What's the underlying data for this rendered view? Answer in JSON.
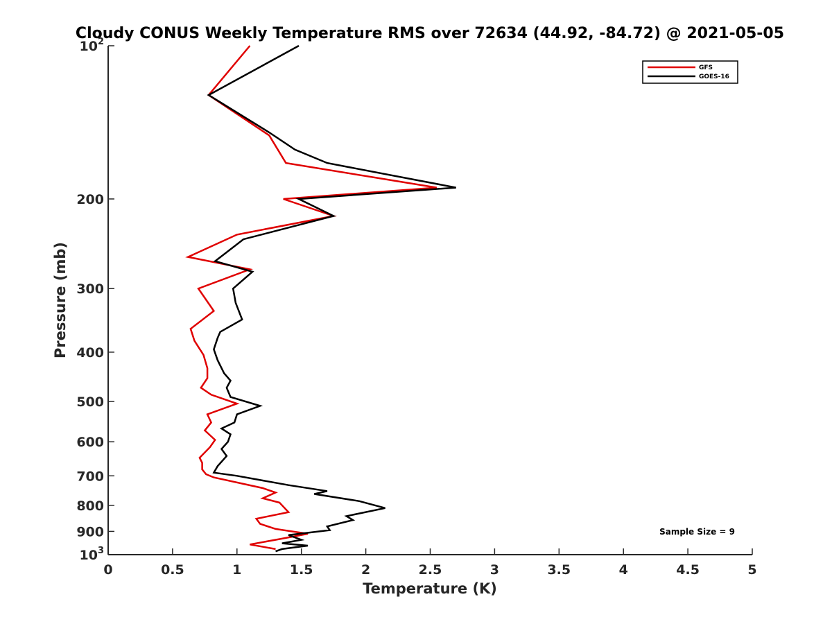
{
  "chart_data": {
    "type": "line",
    "title": "Cloudy CONUS Weekly Temperature RMS over 72634 (44.92, -84.72) @ 2021-05-05",
    "xlabel": "Temperature (K)",
    "ylabel": "Pressure (mb)",
    "xlim": [
      0,
      5
    ],
    "ylim": [
      100,
      1000
    ],
    "y_scale": "log",
    "y_reversed": true,
    "x_ticks": [
      "0",
      "0.5",
      "1",
      "1.5",
      "2",
      "2.5",
      "3",
      "3.5",
      "4",
      "4.5",
      "5"
    ],
    "y_ticks": [
      {
        "value": 100,
        "base": "10",
        "exp": "2"
      },
      {
        "value": 200,
        "label": "200"
      },
      {
        "value": 300,
        "label": "300"
      },
      {
        "value": 400,
        "label": "400"
      },
      {
        "value": 500,
        "label": "500"
      },
      {
        "value": 600,
        "label": "600"
      },
      {
        "value": 700,
        "label": "700"
      },
      {
        "value": 800,
        "label": "800"
      },
      {
        "value": 900,
        "label": "900"
      },
      {
        "value": 1000,
        "base": "10",
        "exp": "3"
      }
    ],
    "grid": false,
    "legend_position": "top-right",
    "annotation": "Sample Size = 9",
    "series": [
      {
        "name": "GFS",
        "color": "#e00000",
        "points": [
          [
            1.1,
            100
          ],
          [
            0.78,
            125
          ],
          [
            1.25,
            150
          ],
          [
            1.38,
            170
          ],
          [
            2.55,
            190
          ],
          [
            1.36,
            200
          ],
          [
            1.75,
            216
          ],
          [
            1.0,
            235
          ],
          [
            0.62,
            260
          ],
          [
            1.1,
            275
          ],
          [
            0.7,
            300
          ],
          [
            0.82,
            332
          ],
          [
            0.64,
            360
          ],
          [
            0.67,
            380
          ],
          [
            0.74,
            405
          ],
          [
            0.77,
            430
          ],
          [
            0.77,
            450
          ],
          [
            0.72,
            470
          ],
          [
            0.8,
            485
          ],
          [
            1.0,
            505
          ],
          [
            0.77,
            530
          ],
          [
            0.8,
            550
          ],
          [
            0.75,
            570
          ],
          [
            0.83,
            595
          ],
          [
            0.79,
            615
          ],
          [
            0.71,
            645
          ],
          [
            0.73,
            660
          ],
          [
            0.73,
            680
          ],
          [
            0.76,
            695
          ],
          [
            0.82,
            705
          ],
          [
            1.2,
            740
          ],
          [
            1.3,
            755
          ],
          [
            1.2,
            775
          ],
          [
            1.33,
            790
          ],
          [
            1.4,
            825
          ],
          [
            1.15,
            850
          ],
          [
            1.18,
            870
          ],
          [
            1.3,
            890
          ],
          [
            1.55,
            910
          ],
          [
            1.35,
            930
          ],
          [
            1.1,
            955
          ],
          [
            1.3,
            975
          ]
        ]
      },
      {
        "name": "GOES-16",
        "color": "#000000",
        "points": [
          [
            1.48,
            100
          ],
          [
            0.78,
            125
          ],
          [
            1.25,
            148
          ],
          [
            1.45,
            160
          ],
          [
            1.7,
            170
          ],
          [
            2.7,
            190
          ],
          [
            1.48,
            200
          ],
          [
            1.75,
            216
          ],
          [
            1.05,
            240
          ],
          [
            0.83,
            265
          ],
          [
            1.12,
            278
          ],
          [
            0.97,
            300
          ],
          [
            0.99,
            320
          ],
          [
            1.04,
            345
          ],
          [
            0.87,
            365
          ],
          [
            0.85,
            375
          ],
          [
            0.82,
            395
          ],
          [
            0.85,
            415
          ],
          [
            0.9,
            440
          ],
          [
            0.95,
            455
          ],
          [
            0.92,
            470
          ],
          [
            0.95,
            490
          ],
          [
            1.18,
            510
          ],
          [
            1.0,
            530
          ],
          [
            0.98,
            550
          ],
          [
            0.88,
            565
          ],
          [
            0.95,
            580
          ],
          [
            0.93,
            600
          ],
          [
            0.88,
            620
          ],
          [
            0.92,
            640
          ],
          [
            0.85,
            670
          ],
          [
            0.82,
            690
          ],
          [
            1.0,
            700
          ],
          [
            1.4,
            730
          ],
          [
            1.7,
            750
          ],
          [
            1.6,
            760
          ],
          [
            1.95,
            785
          ],
          [
            2.15,
            810
          ],
          [
            1.85,
            840
          ],
          [
            1.9,
            855
          ],
          [
            1.7,
            880
          ],
          [
            1.72,
            895
          ],
          [
            1.4,
            915
          ],
          [
            1.5,
            935
          ],
          [
            1.35,
            950
          ],
          [
            1.55,
            960
          ],
          [
            1.35,
            975
          ],
          [
            1.3,
            985
          ]
        ]
      }
    ]
  }
}
